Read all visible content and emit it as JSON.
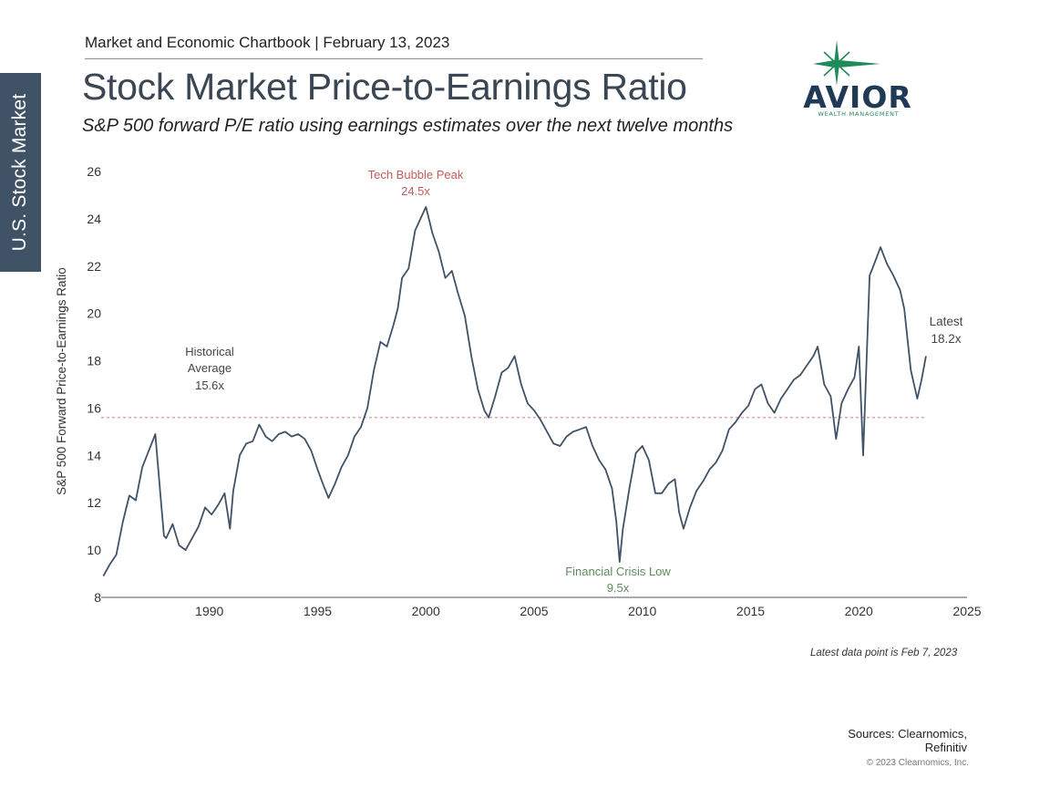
{
  "side_tab": {
    "label": "U.S. Stock Market"
  },
  "header": {
    "line": "Market and Economic Chartbook | February 13, 2023"
  },
  "title": "Stock Market Price-to-Earnings Ratio",
  "subtitle": "S&P 500 forward P/E ratio using earnings estimates over the next twelve months",
  "logo": {
    "name": "AVIOR",
    "tagline": "WEALTH MANAGEMENT",
    "icon": "star-icon",
    "colors": {
      "text": "#1f3a55",
      "star": "#1f8a5a"
    }
  },
  "chart_data": {
    "type": "line",
    "ylabel": "S&P 500 Forward Price-to-Earnings Ratio",
    "xlabel": "",
    "xlim": [
      1985,
      2025
    ],
    "ylim": [
      8,
      26
    ],
    "xticks": [
      1990,
      1995,
      2000,
      2005,
      2010,
      2015,
      2020,
      2025
    ],
    "yticks": [
      8,
      10,
      12,
      14,
      16,
      18,
      20,
      22,
      24,
      26
    ],
    "grid": false,
    "historical_average": 15.6,
    "colors": {
      "line": "#3f5266",
      "average": "#e08a8a",
      "peak_label": "#c45c5c",
      "low_label": "#5f8a5f",
      "text": "#444444"
    },
    "annotations": {
      "peak": {
        "title": "Tech Bubble Peak",
        "value": "24.5x"
      },
      "average": {
        "line1": "Historical",
        "line2": "Average",
        "value": "15.6x"
      },
      "low": {
        "title": "Financial Crisis Low",
        "value": "9.5x"
      },
      "latest": {
        "title": "Latest",
        "value": "18.2x"
      }
    },
    "series": [
      {
        "x": [
          1985.1,
          1985.4,
          1985.7,
          1986.0,
          1986.3,
          1986.6,
          1986.9,
          1987.2,
          1987.5,
          1987.75,
          1987.9,
          1988.0,
          1988.3,
          1988.6,
          1988.9,
          1989.2,
          1989.5,
          1989.8,
          1990.1,
          1990.4,
          1990.7,
          1990.95,
          1991.1,
          1991.4,
          1991.7,
          1992.0,
          1992.3,
          1992.6,
          1992.9,
          1993.2,
          1993.5,
          1993.8,
          1994.1,
          1994.4,
          1994.7,
          1995.0,
          1995.2,
          1995.5,
          1995.8,
          1996.1,
          1996.4,
          1996.7,
          1997.0,
          1997.3,
          1997.6,
          1997.9,
          1998.2,
          1998.5,
          1998.7,
          1998.9,
          1999.2,
          1999.5,
          1999.8,
          2000.0,
          2000.3,
          2000.6,
          2000.9,
          2001.2,
          2001.5,
          2001.8,
          2002.1,
          2002.4,
          2002.7,
          2002.9,
          2003.2,
          2003.5,
          2003.8,
          2004.1,
          2004.4,
          2004.7,
          2005.0,
          2005.3,
          2005.6,
          2005.9,
          2006.2,
          2006.5,
          2006.8,
          2007.1,
          2007.4,
          2007.7,
          2008.0,
          2008.3,
          2008.6,
          2008.8,
          2008.95,
          2009.1,
          2009.4,
          2009.7,
          2010.0,
          2010.3,
          2010.6,
          2010.9,
          2011.2,
          2011.5,
          2011.7,
          2011.9,
          2012.2,
          2012.5,
          2012.8,
          2013.1,
          2013.4,
          2013.7,
          2014.0,
          2014.3,
          2014.6,
          2014.9,
          2015.2,
          2015.5,
          2015.8,
          2016.1,
          2016.4,
          2016.7,
          2017.0,
          2017.3,
          2017.6,
          2017.9,
          2018.1,
          2018.4,
          2018.7,
          2018.95,
          2019.2,
          2019.5,
          2019.8,
          2020.0,
          2020.2,
          2020.5,
          2020.8,
          2021.0,
          2021.3,
          2021.6,
          2021.9,
          2022.1,
          2022.4,
          2022.7,
          2022.9,
          2023.1
        ],
        "y": [
          8.9,
          9.4,
          9.8,
          11.2,
          12.3,
          12.1,
          13.5,
          14.2,
          14.9,
          12.2,
          10.6,
          10.5,
          11.1,
          10.2,
          10.0,
          10.5,
          11.0,
          11.8,
          11.5,
          11.9,
          12.4,
          10.9,
          12.5,
          14.0,
          14.5,
          14.6,
          15.3,
          14.8,
          14.6,
          14.9,
          15.0,
          14.8,
          14.9,
          14.7,
          14.2,
          13.4,
          12.9,
          12.2,
          12.8,
          13.5,
          14.0,
          14.8,
          15.2,
          16.0,
          17.6,
          18.8,
          18.6,
          19.5,
          20.2,
          21.5,
          21.9,
          23.5,
          24.1,
          24.5,
          23.4,
          22.6,
          21.5,
          21.8,
          20.8,
          19.9,
          18.2,
          16.8,
          15.9,
          15.6,
          16.5,
          17.5,
          17.7,
          18.2,
          17.0,
          16.2,
          15.9,
          15.5,
          15.0,
          14.5,
          14.4,
          14.8,
          15.0,
          15.1,
          15.2,
          14.4,
          13.8,
          13.4,
          12.6,
          11.2,
          9.5,
          10.9,
          12.6,
          14.1,
          14.4,
          13.8,
          12.4,
          12.4,
          12.8,
          13.0,
          11.6,
          10.9,
          11.8,
          12.5,
          12.9,
          13.4,
          13.7,
          14.2,
          15.1,
          15.4,
          15.8,
          16.1,
          16.8,
          17.0,
          16.2,
          15.8,
          16.4,
          16.8,
          17.2,
          17.4,
          17.8,
          18.2,
          18.6,
          17.0,
          16.5,
          14.7,
          16.2,
          16.8,
          17.3,
          18.6,
          14.0,
          21.6,
          22.3,
          22.8,
          22.1,
          21.6,
          21.0,
          20.2,
          17.6,
          16.4,
          17.2,
          18.2
        ]
      }
    ]
  },
  "footnote": "Latest data point is Feb 7, 2023",
  "sources": {
    "line1": "Sources: Clearnomics,",
    "line2": "Refinitiv"
  },
  "copyright": "© 2023 Clearnomics, Inc."
}
